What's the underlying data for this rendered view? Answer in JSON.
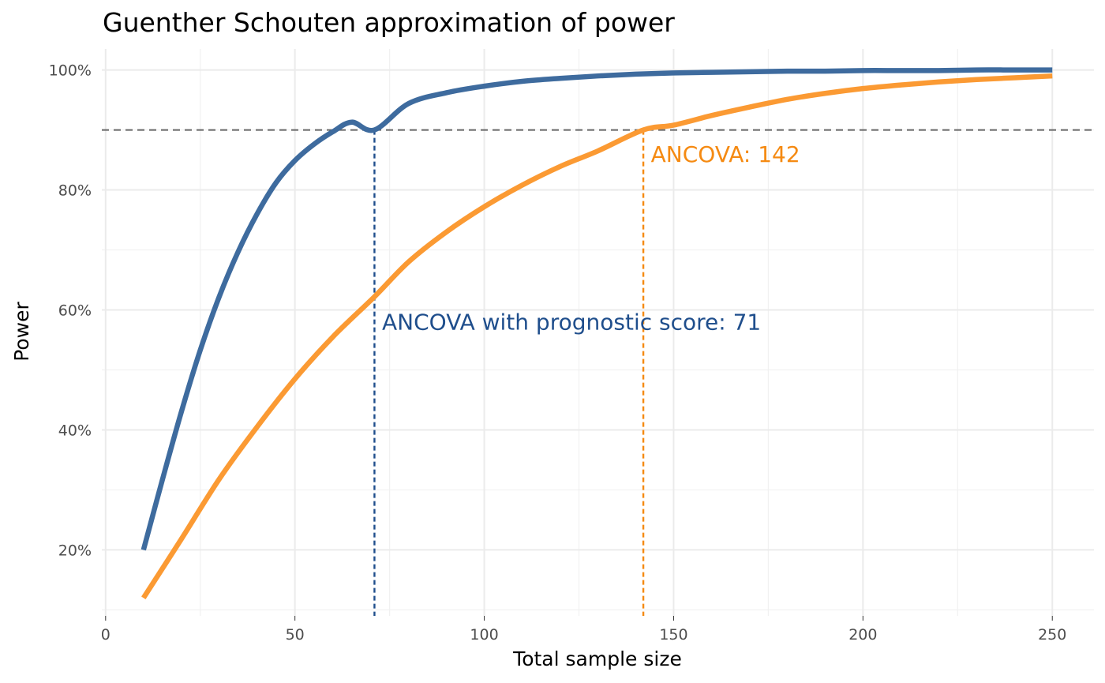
{
  "chart_data": {
    "type": "line",
    "title": "Guenther Schouten approximation of power",
    "xlabel": "Total sample size",
    "ylabel": "Power",
    "xlim": [
      -1,
      261
    ],
    "ylim": [
      0.09,
      1.035
    ],
    "x_ticks": [
      0,
      50,
      100,
      150,
      200,
      250
    ],
    "x_tick_labels": [
      "0",
      "50",
      "100",
      "150",
      "200",
      "250"
    ],
    "y_ticks": [
      0.2,
      0.4,
      0.6,
      0.8,
      1.0
    ],
    "y_tick_labels": [
      "20%",
      "40%",
      "60%",
      "80%",
      "100%"
    ],
    "grid": true,
    "legend": "none",
    "target_power": 0.9,
    "series": [
      {
        "color": "#3e6b9e",
        "x": [
          10,
          15,
          20,
          25,
          30,
          35,
          40,
          45,
          50,
          55,
          60,
          65,
          71,
          80,
          90,
          100,
          110,
          120,
          130,
          140,
          150,
          160,
          170,
          180,
          190,
          200,
          210,
          220,
          230,
          240,
          250
        ],
        "y": [
          0.2,
          0.317,
          0.43,
          0.533,
          0.622,
          0.697,
          0.76,
          0.812,
          0.849,
          0.876,
          0.897,
          0.913,
          0.9,
          0.944,
          0.962,
          0.973,
          0.981,
          0.986,
          0.99,
          0.993,
          0.995,
          0.996,
          0.997,
          0.998,
          0.998,
          0.999,
          0.999,
          0.999,
          1.0,
          1.0,
          1.0
        ]
      },
      {
        "color": "#fb9a33",
        "x": [
          10,
          20,
          30,
          40,
          50,
          60,
          71,
          80,
          90,
          100,
          110,
          120,
          130,
          142,
          150,
          160,
          170,
          180,
          190,
          200,
          210,
          220,
          230,
          240,
          250
        ],
        "y": [
          0.12,
          0.218,
          0.318,
          0.405,
          0.485,
          0.555,
          0.622,
          0.68,
          0.73,
          0.772,
          0.808,
          0.839,
          0.865,
          0.9,
          0.908,
          0.924,
          0.938,
          0.951,
          0.961,
          0.969,
          0.975,
          0.98,
          0.984,
          0.987,
          0.99
        ]
      }
    ],
    "reference_lines": {
      "hline": {
        "y": 0.9,
        "color": "#666666"
      },
      "vlines": [
        {
          "x": 71,
          "color": "#1f4e8c"
        },
        {
          "x": 142,
          "color": "#f58a12"
        }
      ]
    },
    "annotations": [
      {
        "text": "ANCOVA: 142",
        "x": 144,
        "y": 0.86,
        "color": "#f58a12"
      },
      {
        "text": "ANCOVA with prognostic score: 71",
        "x": 73,
        "y": 0.58,
        "color": "#1f4e8c"
      }
    ]
  }
}
